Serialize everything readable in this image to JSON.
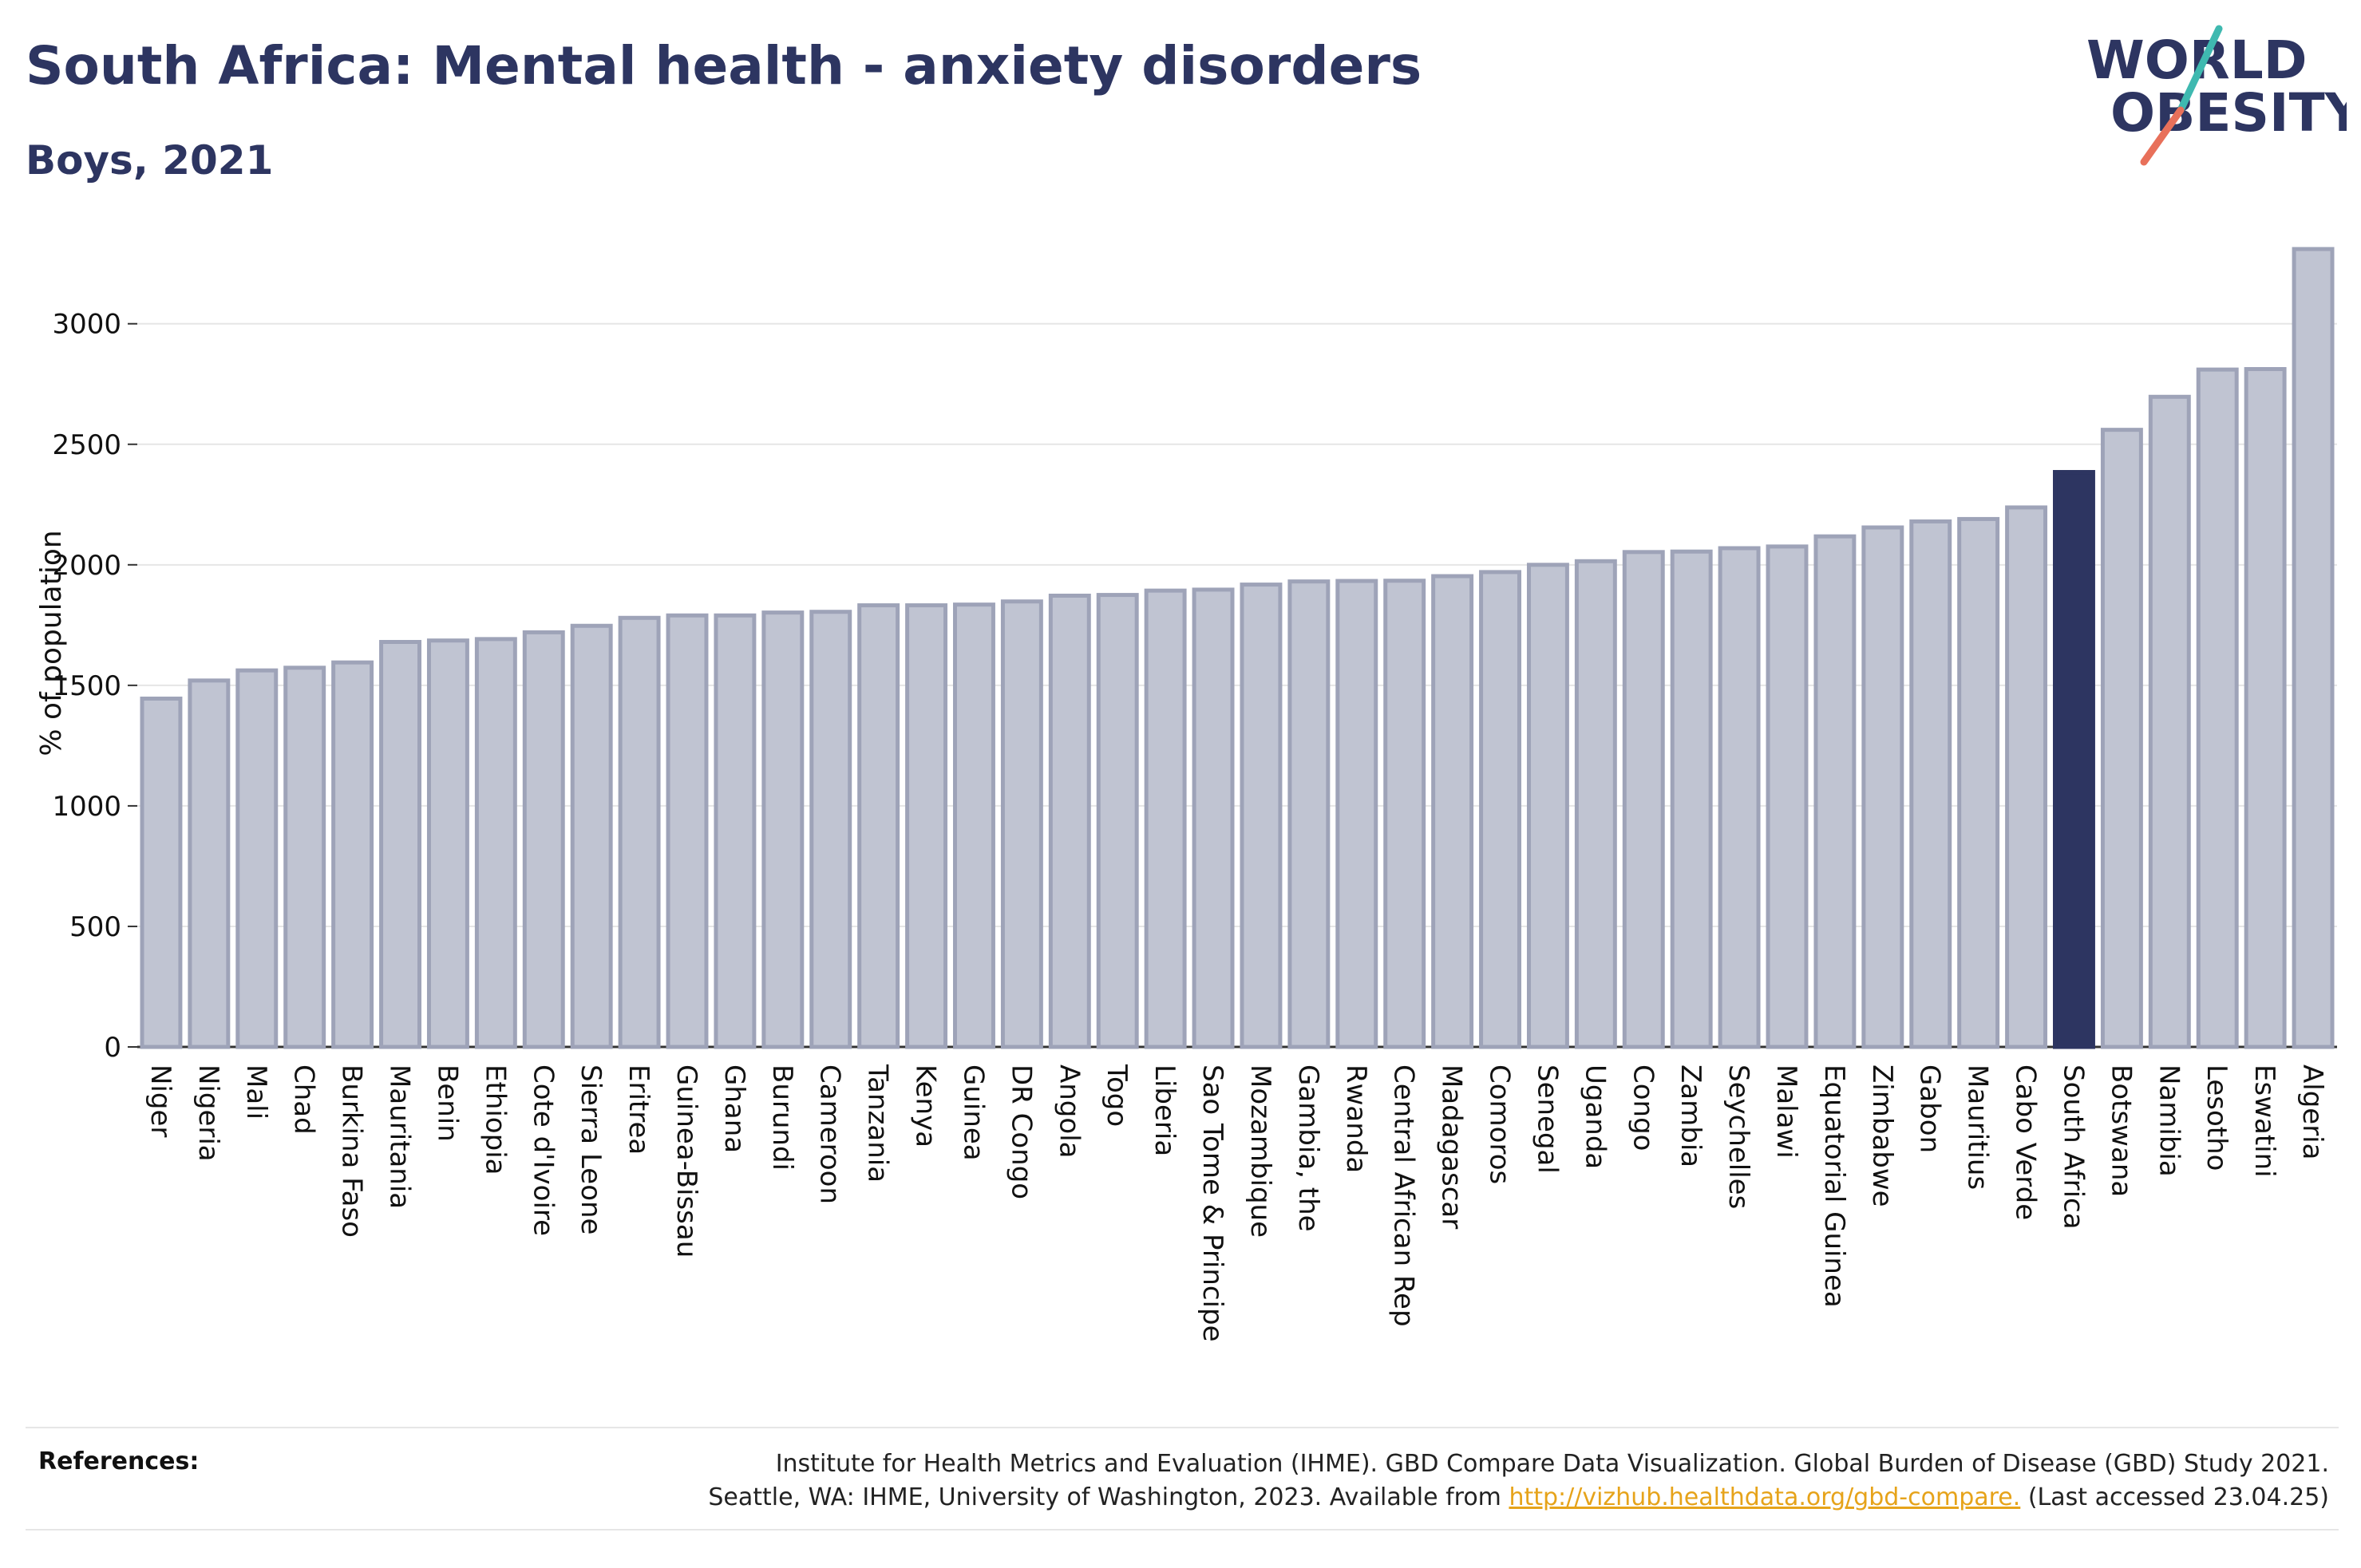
{
  "title": "South Africa: Mental health - anxiety disorders",
  "subtitle": "Boys, 2021",
  "logo": {
    "line1": "WORLD",
    "line2": "OBESITY"
  },
  "references": {
    "label": "References:",
    "line1": "Institute for Health Metrics and Evaluation (IHME). GBD Compare Data Visualization. Global Burden of Disease (GBD) Study 2021.",
    "line2_pre": "Seattle, WA: IHME, University of Washington, 2023. Available from ",
    "link": "http://vizhub.healthdata.org/gbd-compare.",
    "line2_post": " (Last accessed 23.04.25)"
  },
  "colors": {
    "bar": "#c0c4d2",
    "bar_stroke": "#9ea3b8",
    "highlight": "#2d3561",
    "text": "#2d3561"
  },
  "chart_data": {
    "type": "bar",
    "ylabel": "% of population",
    "ylim": [
      0,
      3350
    ],
    "yticks": [
      0,
      500,
      1000,
      1500,
      2000,
      2500,
      3000
    ],
    "highlight": "South Africa",
    "grid": true,
    "categories": [
      "Niger",
      "Nigeria",
      "Mali",
      "Chad",
      "Burkina Faso",
      "Mauritania",
      "Benin",
      "Ethiopia",
      "Cote d'Ivoire",
      "Sierra Leone",
      "Eritrea",
      "Guinea-Bissau",
      "Ghana",
      "Burundi",
      "Cameroon",
      "Tanzania",
      "Kenya",
      "Guinea",
      "DR Congo",
      "Angola",
      "Togo",
      "Liberia",
      "Sao Tome & Principe",
      "Mozambique",
      "Gambia, the",
      "Rwanda",
      "Central African Rep",
      "Madagascar",
      "Comoros",
      "Senegal",
      "Uganda",
      "Congo",
      "Zambia",
      "Seychelles",
      "Malawi",
      "Equatorial Guinea",
      "Zimbabwe",
      "Gabon",
      "Mauritius",
      "Cabo Verde",
      "South Africa",
      "Botswana",
      "Namibia",
      "Lesotho",
      "Eswatini",
      "Algeria"
    ],
    "values": [
      1445,
      1520,
      1562,
      1573,
      1595,
      1680,
      1686,
      1692,
      1720,
      1747,
      1780,
      1790,
      1790,
      1802,
      1805,
      1832,
      1832,
      1835,
      1848,
      1872,
      1875,
      1893,
      1897,
      1918,
      1931,
      1933,
      1934,
      1953,
      1970,
      2000,
      2015,
      2053,
      2055,
      2069,
      2076,
      2118,
      2155,
      2180,
      2190,
      2238,
      2385,
      2560,
      2697,
      2810,
      2812,
      3310
    ]
  }
}
